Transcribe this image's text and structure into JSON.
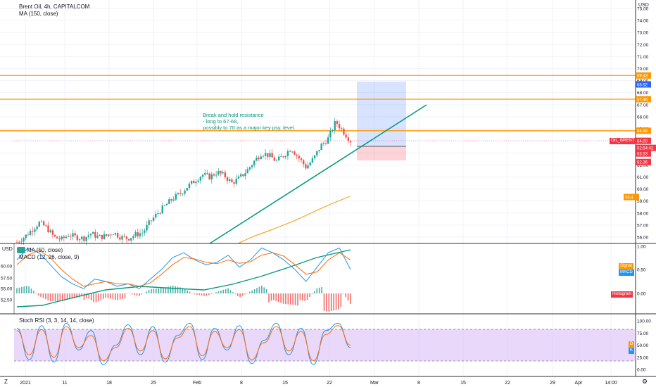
{
  "header": {
    "symbol_line": "Brent Oil, 4h, CAPITALCOM",
    "ma_line": "MA (150, close)"
  },
  "price_scale": {
    "currency": "USD",
    "ticks": [
      "75.00",
      "74.00",
      "73.00",
      "72.00",
      "71.00",
      "70.00",
      "69.00",
      "68.00",
      "67.00",
      "66.00",
      "65.00",
      "64.00",
      "63.00",
      "62.00",
      "61.00",
      "60.00",
      "59.00",
      "58.00",
      "57.00",
      "56.00"
    ],
    "tags": [
      {
        "text": "69.43",
        "color": "#ff9800"
      },
      {
        "text": "68.92",
        "color": "#2962ff"
      },
      {
        "text": "67.46",
        "color": "#ff9800"
      },
      {
        "text": "64.84",
        "color": "#ff9800"
      },
      {
        "text": "64.00",
        "color": "#f23645"
      },
      {
        "text": "02:54:42",
        "color": "#f23645"
      },
      {
        "text": "63.53",
        "color": "#f23645"
      },
      {
        "text": "62.36",
        "color": "#f23645"
      },
      {
        "text": "59.4",
        "color": "#ff9800"
      }
    ],
    "symbol_tag": "OIL_BRENT"
  },
  "annotation": {
    "lines": [
      "Break and hold resistance",
      "- long to 67-68,",
      "possibly to 70 as a major key psy. level."
    ],
    "color": "#089981"
  },
  "macd_pane": {
    "currency": "USD",
    "ma_legend": "MA (50, close)",
    "title": "MACD (12, 26, close, 9)",
    "left_ticks": [
      "60.00",
      "57.50",
      "55.00",
      "52.50"
    ],
    "right_ticks": [
      "1.00",
      "0.50",
      "0.00"
    ],
    "tags": [
      {
        "text": "Signal",
        "color": "#ff9800"
      },
      {
        "text": "MACD",
        "color": "#2196f3"
      },
      {
        "text": "Histogram",
        "color": "#f23645"
      }
    ]
  },
  "stoch_pane": {
    "title": "Stoch RSI (3, 3, 14, 14, close)",
    "ticks": [
      "100.00",
      "75.00",
      "50.00",
      "25.00",
      "0.00"
    ],
    "tags": [
      {
        "text": "D",
        "color": "#ff9800"
      },
      {
        "text": "K",
        "color": "#2196f3"
      }
    ]
  },
  "time_axis": {
    "labels": [
      "2021",
      "11",
      "18",
      "25",
      "Feb",
      "8",
      "15",
      "22",
      "Mar",
      "8",
      "15",
      "22",
      "29",
      "Apr",
      "14:00"
    ],
    "corner_left": "Z",
    "corner_right": "gear-icon"
  },
  "colors": {
    "up": "#26a69a",
    "down": "#ef5350",
    "resistance": "#ff9800",
    "trendline": "#089981",
    "ma150": "#f7a21b",
    "macd": "#2196f3",
    "signal": "#ff6d00",
    "stoch_band": "#d1a8f7"
  },
  "chart_data": [
    {
      "type": "candlestick",
      "title": "Brent Oil, 4h, CAPITALCOM",
      "x_labels": [
        "2021",
        "11",
        "18",
        "25",
        "Feb",
        "8",
        "15",
        "22",
        "Mar",
        "8",
        "15",
        "22",
        "29",
        "Apr"
      ],
      "ylim": [
        55.5,
        75.5
      ],
      "close_path": [
        55.6,
        56.0,
        56.6,
        57.2,
        56.8,
        56.0,
        55.8,
        56.2,
        56.0,
        55.9,
        56.3,
        56.0,
        56.1,
        56.4,
        56.0,
        55.9,
        56.2,
        56.4,
        57.3,
        58.0,
        58.6,
        59.2,
        59.6,
        60.2,
        60.7,
        61.2,
        61.0,
        61.4,
        61.1,
        60.5,
        60.9,
        61.5,
        62.3,
        63.0,
        62.8,
        62.3,
        62.8,
        63.4,
        62.6,
        61.8,
        62.5,
        63.6,
        64.2,
        65.6,
        64.8,
        64.0
      ],
      "resistance_levels": [
        69.43,
        67.46,
        64.84
      ],
      "position": {
        "entry": 63.53,
        "target": 68.92,
        "stop": 62.36
      },
      "last_price": 64.0,
      "ma150_label": "MA (150, close)"
    },
    {
      "type": "line",
      "title": "MACD (12, 26, close, 9)",
      "series": [
        {
          "name": "MACD",
          "values": [
            0.7,
            0.95,
            0.85,
            0.6,
            0.35,
            0.2,
            0.1,
            0.3,
            0.25,
            0.15,
            0.2,
            0.1,
            0.3,
            0.5,
            0.75,
            0.85,
            0.7,
            0.6,
            0.65,
            0.8,
            0.55,
            0.7,
            0.95,
            0.85,
            0.7,
            0.5,
            0.25,
            0.55,
            0.85,
            0.95,
            0.5
          ]
        },
        {
          "name": "Signal",
          "values": [
            0.6,
            0.8,
            0.9,
            0.75,
            0.5,
            0.3,
            0.15,
            0.2,
            0.25,
            0.2,
            0.2,
            0.15,
            0.22,
            0.4,
            0.6,
            0.75,
            0.72,
            0.65,
            0.62,
            0.7,
            0.63,
            0.66,
            0.8,
            0.85,
            0.78,
            0.6,
            0.4,
            0.45,
            0.7,
            0.85,
            0.7
          ]
        }
      ],
      "ylim": [
        -0.2,
        1.0
      ]
    },
    {
      "type": "line",
      "title": "Stoch RSI (3, 3, 14, 14, close)",
      "series": [
        {
          "name": "K",
          "values": [
            85,
            20,
            90,
            15,
            95,
            40,
            80,
            10,
            50,
            92,
            30,
            88,
            15,
            70,
            95,
            20,
            85,
            40,
            90,
            12,
            60,
            95,
            30,
            85,
            10,
            80,
            95,
            45
          ]
        },
        {
          "name": "D",
          "values": [
            80,
            30,
            82,
            25,
            88,
            45,
            70,
            18,
            45,
            85,
            38,
            80,
            22,
            65,
            88,
            28,
            78,
            45,
            82,
            20,
            55,
            88,
            38,
            78,
            18,
            72,
            90,
            50
          ]
        }
      ],
      "ylim": [
        0,
        100
      ],
      "bands": [
        20,
        80
      ]
    }
  ]
}
